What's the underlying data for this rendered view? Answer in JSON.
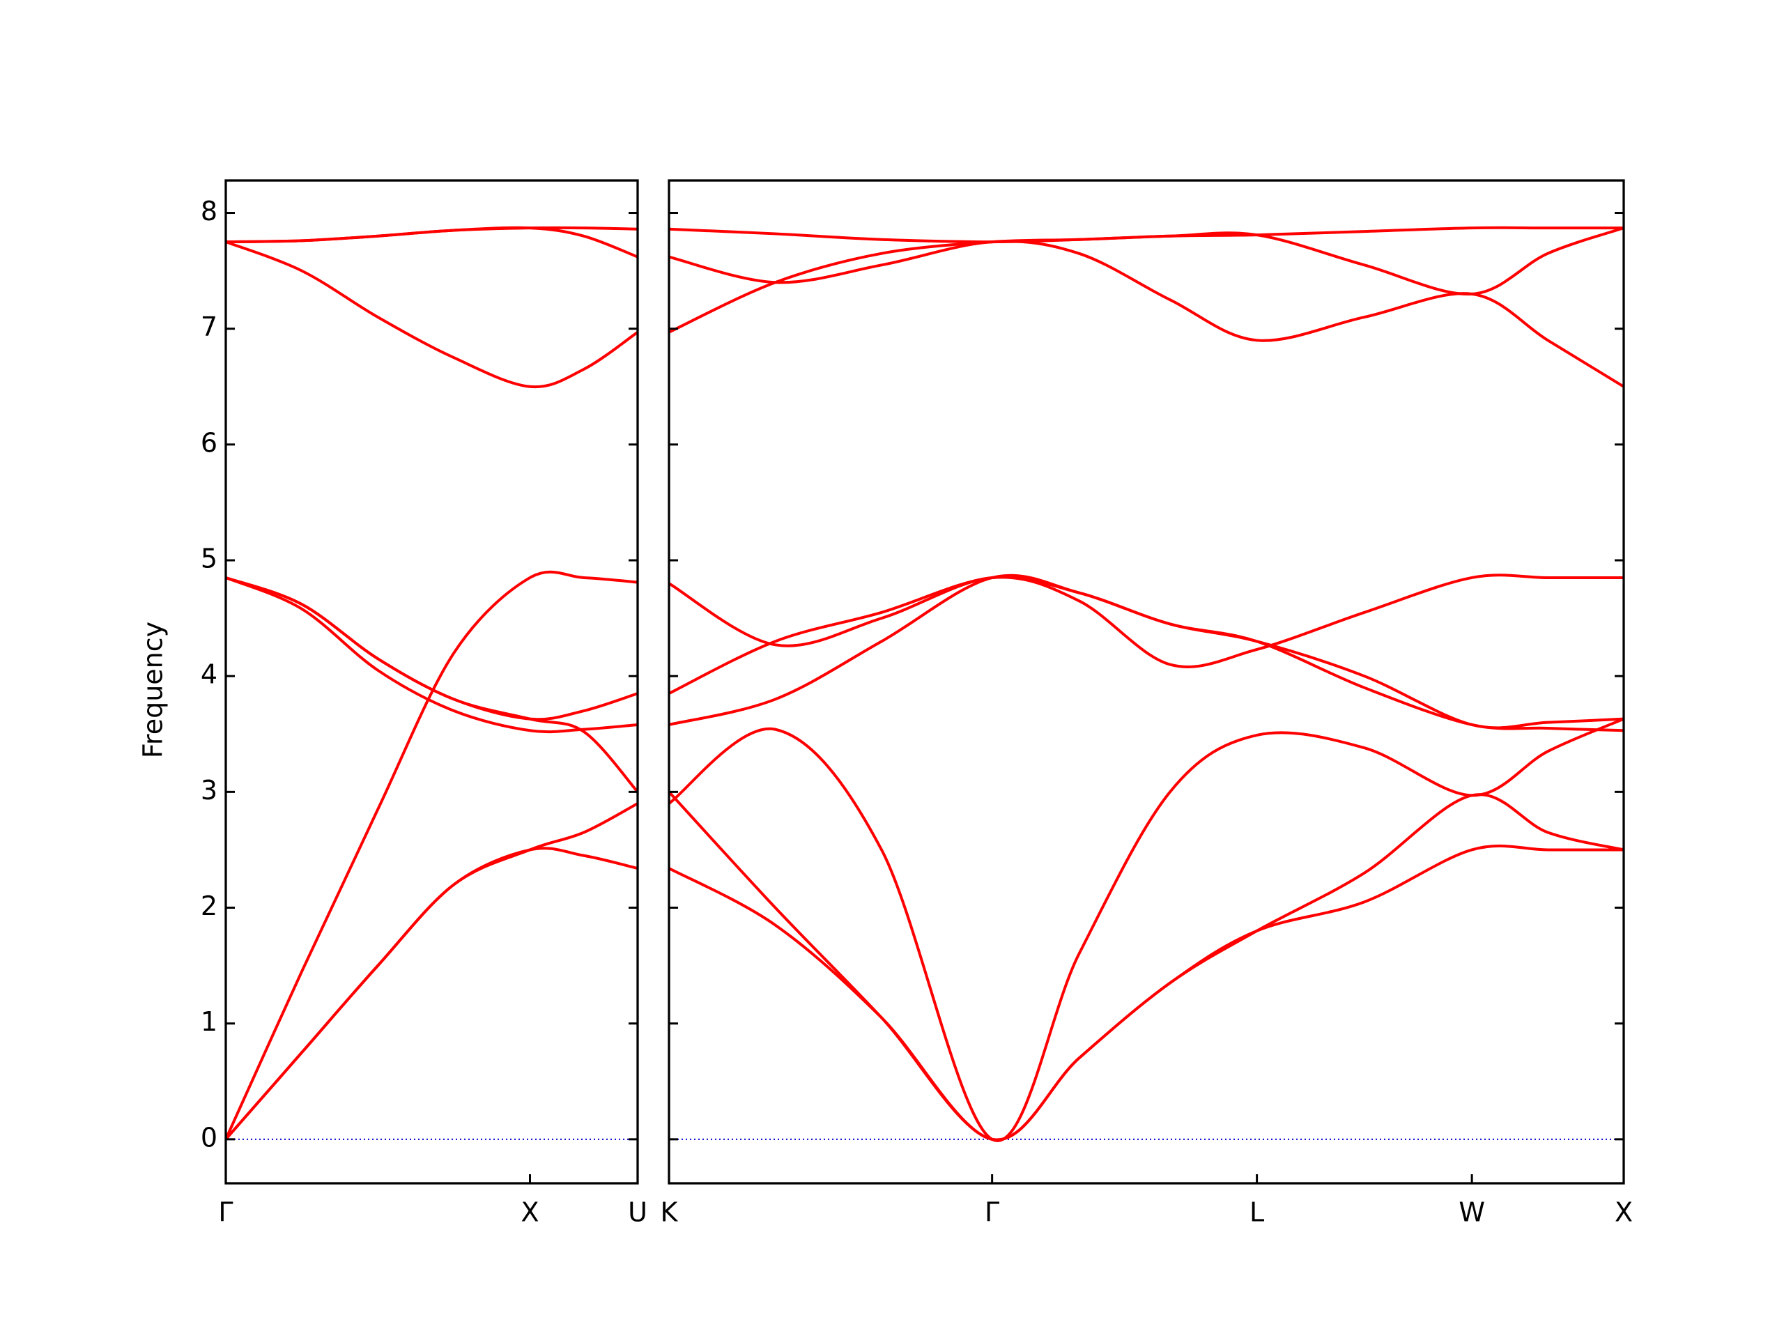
{
  "chart_data": [
    {
      "type": "line",
      "ylabel": "Frequency",
      "color": "#ff0000",
      "zero_line_color": "#0000cd",
      "x": [
        0,
        0.25,
        0.5,
        0.75,
        1,
        1.177,
        1.354
      ],
      "xlim": [
        0,
        1.354
      ],
      "xticks": [
        {
          "value": 0,
          "label": "Γ"
        },
        {
          "value": 1,
          "label": "X"
        },
        {
          "value": 1.354,
          "label": "U"
        }
      ],
      "ylim": [
        -0.38,
        8.28
      ],
      "yticks": [
        0,
        1,
        2,
        3,
        4,
        5,
        6,
        7,
        8
      ],
      "series": [
        {
          "values": [
            0,
            0.75,
            1.5,
            2.2,
            2.5,
            2.45,
            2.34
          ]
        },
        {
          "values": [
            0,
            0.75,
            1.5,
            2.2,
            2.5,
            2.65,
            2.9
          ]
        },
        {
          "values": [
            0,
            1.45,
            2.85,
            4.2,
            4.85,
            4.85,
            4.81
          ]
        },
        {
          "values": [
            4.85,
            4.62,
            4.15,
            3.8,
            3.63,
            3.52,
            3.0
          ]
        },
        {
          "values": [
            4.85,
            4.62,
            4.15,
            3.8,
            3.63,
            3.7,
            3.85
          ]
        },
        {
          "values": [
            4.85,
            4.58,
            4.05,
            3.7,
            3.53,
            3.54,
            3.58
          ]
        },
        {
          "values": [
            7.75,
            7.76,
            7.8,
            7.85,
            7.87,
            7.87,
            7.86
          ]
        },
        {
          "values": [
            7.75,
            7.5,
            7.1,
            6.75,
            6.5,
            6.65,
            6.97
          ]
        },
        {
          "values": [
            7.75,
            7.76,
            7.8,
            7.85,
            7.87,
            7.8,
            7.62
          ]
        }
      ]
    },
    {
      "type": "line",
      "color": "#ff0000",
      "zero_line_color": "#0000cd",
      "share_y": true,
      "x": [
        0,
        0.35,
        0.7,
        1.064,
        1.35,
        1.65,
        1.936,
        2.29,
        2.644,
        2.894,
        3.144
      ],
      "xlim": [
        0,
        3.144
      ],
      "xticks": [
        {
          "value": 0,
          "label": "K"
        },
        {
          "value": 1.064,
          "label": "Γ"
        },
        {
          "value": 1.936,
          "label": "L"
        },
        {
          "value": 2.644,
          "label": "W"
        },
        {
          "value": 3.144,
          "label": "X"
        }
      ],
      "series": [
        {
          "values": [
            2.34,
            1.85,
            1.05,
            0,
            0.7,
            1.35,
            1.8,
            2.05,
            2.5,
            2.5,
            2.5
          ]
        },
        {
          "values": [
            3.0,
            2.0,
            1.05,
            0,
            0.7,
            1.35,
            1.8,
            2.3,
            2.97,
            2.65,
            2.5
          ]
        },
        {
          "values": [
            2.9,
            3.54,
            2.5,
            0,
            1.6,
            3.0,
            3.49,
            3.38,
            2.97,
            3.35,
            3.63
          ]
        },
        {
          "values": [
            4.8,
            4.27,
            4.5,
            4.85,
            4.65,
            4.1,
            4.23,
            4.55,
            4.85,
            4.85,
            4.85
          ]
        },
        {
          "values": [
            3.85,
            4.3,
            4.55,
            4.85,
            4.72,
            4.45,
            4.3,
            4.0,
            3.58,
            3.6,
            3.63
          ]
        },
        {
          "values": [
            3.58,
            3.8,
            4.3,
            4.85,
            4.72,
            4.45,
            4.3,
            3.9,
            3.58,
            3.55,
            3.53
          ]
        },
        {
          "values": [
            7.86,
            7.82,
            7.77,
            7.75,
            7.77,
            7.8,
            7.81,
            7.84,
            7.87,
            7.87,
            7.87
          ]
        },
        {
          "values": [
            7.62,
            7.4,
            7.55,
            7.75,
            7.65,
            7.25,
            6.9,
            7.1,
            7.3,
            6.9,
            6.5
          ]
        },
        {
          "values": [
            6.97,
            7.4,
            7.65,
            7.75,
            7.77,
            7.8,
            7.81,
            7.55,
            7.3,
            7.65,
            7.87
          ]
        }
      ]
    }
  ]
}
